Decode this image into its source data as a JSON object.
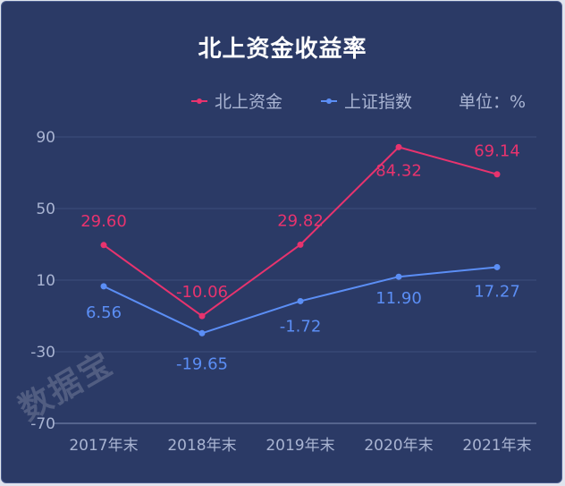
{
  "watermark": "数据宝",
  "chart_data": {
    "type": "line",
    "title": "北上资金收益率",
    "unit_label": "单位：%",
    "categories": [
      "2017年末",
      "2018年末",
      "2019年末",
      "2020年末",
      "2021年末"
    ],
    "yticks": [
      90,
      50,
      10,
      -30,
      -70
    ],
    "ylim": [
      -70,
      90
    ],
    "grid": true,
    "legend_position": "top-right",
    "series": [
      {
        "name": "北上资金",
        "color": "#e8336e",
        "values": [
          29.6,
          -10.06,
          29.82,
          84.32,
          69.14
        ],
        "labels": [
          "29.60",
          "-10.06",
          "29.82",
          "84.32",
          "69.14"
        ]
      },
      {
        "name": "上证指数",
        "color": "#5b8ef5",
        "values": [
          6.56,
          -19.65,
          -1.72,
          11.9,
          17.27
        ],
        "labels": [
          "6.56",
          "-19.65",
          "-1.72",
          "11.90",
          "17.27"
        ]
      }
    ]
  }
}
